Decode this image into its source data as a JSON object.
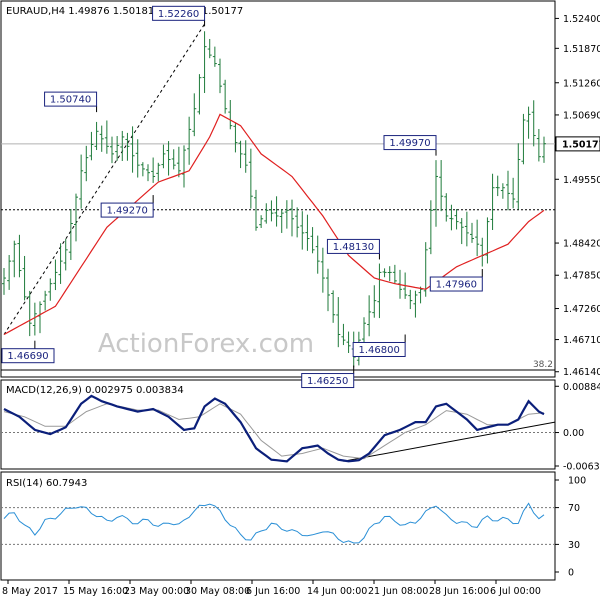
{
  "chart_data": {
    "type": "candlestick",
    "watermark": "ActionForex.com",
    "x_tick_labels": [
      "8 May 2017",
      "15 May 16:00",
      "23 May 00:00",
      "30 May 08:00",
      "6 Jun 16:00",
      "14 Jun 00:00",
      "21 Jun 08:00",
      "28 Jun 16:00",
      "6 Jul 00:00"
    ],
    "price_panel": {
      "header": "EURAUD,H4  1.49876 1.50181 1.49773 1.50177",
      "ylim": [
        1.461,
        1.5262
      ],
      "y_ticks": [
        "1.52400",
        "1.51870",
        "1.51260",
        "1.50690",
        "1.49550",
        "1.48420",
        "1.47850",
        "1.47260",
        "1.46710",
        "1.46140"
      ],
      "current_price": "1.50177",
      "hline_price": "1.50177",
      "dotted_level": "1.49010",
      "fib_label": "38.2",
      "fib_level": 1.4617,
      "trendline": [
        [
          0,
          1.468
        ],
        [
          39,
          1.523
        ]
      ],
      "annotations": [
        {
          "label": "1.46690",
          "index": 6,
          "price": 1.4669,
          "pos": "below"
        },
        {
          "label": "1.50740",
          "index": 18,
          "price": 1.5074,
          "pos": "above"
        },
        {
          "label": "1.49270",
          "index": 29,
          "price": 1.4927,
          "pos": "below"
        },
        {
          "label": "1.52260",
          "index": 39,
          "price": 1.5226,
          "pos": "above"
        },
        {
          "label": "1.46250",
          "index": 68,
          "price": 1.4625,
          "pos": "below"
        },
        {
          "label": "1.48130",
          "index": 73,
          "price": 1.4813,
          "pos": "above"
        },
        {
          "label": "1.46800",
          "index": 78,
          "price": 1.468,
          "pos": "below"
        },
        {
          "label": "1.49970",
          "index": 84,
          "price": 1.4997,
          "pos": "above"
        },
        {
          "label": "1.47960",
          "index": 93,
          "price": 1.4796,
          "pos": "below"
        }
      ],
      "close_anchors": [
        [
          0,
          1.478
        ],
        [
          2,
          1.484
        ],
        [
          5,
          1.47
        ],
        [
          8,
          1.475
        ],
        [
          12,
          1.483
        ],
        [
          15,
          1.497
        ],
        [
          18,
          1.504
        ],
        [
          21,
          1.5
        ],
        [
          23,
          1.503
        ],
        [
          26,
          1.498
        ],
        [
          29,
          1.496
        ],
        [
          31,
          1.5
        ],
        [
          34,
          1.497
        ],
        [
          37,
          1.508
        ],
        [
          39,
          1.519
        ],
        [
          41,
          1.516
        ],
        [
          43,
          1.508
        ],
        [
          45,
          1.502
        ],
        [
          47,
          1.498
        ],
        [
          49,
          1.487
        ],
        [
          51,
          1.49
        ],
        [
          53,
          1.489
        ],
        [
          55,
          1.49
        ],
        [
          57,
          1.487
        ],
        [
          59,
          1.485
        ],
        [
          61,
          1.481
        ],
        [
          63,
          1.475
        ],
        [
          65,
          1.468
        ],
        [
          67,
          1.466
        ],
        [
          68,
          1.464
        ],
        [
          70,
          1.47
        ],
        [
          72,
          1.474
        ],
        [
          73,
          1.479
        ],
        [
          75,
          1.479
        ],
        [
          77,
          1.476
        ],
        [
          79,
          1.474
        ],
        [
          81,
          1.476
        ],
        [
          83,
          1.49
        ],
        [
          84,
          1.496
        ],
        [
          86,
          1.489
        ],
        [
          88,
          1.488
        ],
        [
          90,
          1.486
        ],
        [
          92,
          1.484
        ],
        [
          93,
          1.482
        ],
        [
          95,
          1.494
        ],
        [
          97,
          1.494
        ],
        [
          99,
          1.492
        ],
        [
          101,
          1.506
        ],
        [
          102,
          1.507
        ],
        [
          104,
          1.4995
        ],
        [
          105,
          1.5018
        ]
      ],
      "ma_anchors": [
        [
          0,
          1.468
        ],
        [
          10,
          1.473
        ],
        [
          20,
          1.487
        ],
        [
          30,
          1.495
        ],
        [
          36,
          1.497
        ],
        [
          40,
          1.503
        ],
        [
          42,
          1.507
        ],
        [
          46,
          1.505
        ],
        [
          50,
          1.5
        ],
        [
          56,
          1.496
        ],
        [
          62,
          1.489
        ],
        [
          67,
          1.482
        ],
        [
          72,
          1.478
        ],
        [
          76,
          1.477
        ],
        [
          82,
          1.476
        ],
        [
          88,
          1.48
        ],
        [
          93,
          1.482
        ],
        [
          98,
          1.484
        ],
        [
          102,
          1.488
        ],
        [
          105,
          1.49
        ]
      ]
    },
    "macd_panel": {
      "label": "MACD(12,26,9) 0.002975 0.003834",
      "ylim": [
        -0.0064,
        0.0089
      ],
      "y_ticks": [
        "0.008848",
        "0.00",
        "-0.006399"
      ],
      "macd_anchors": [
        [
          0,
          0.0045
        ],
        [
          3,
          0.003
        ],
        [
          6,
          0.0005
        ],
        [
          9,
          -0.0003
        ],
        [
          12,
          0.001
        ],
        [
          15,
          0.0055
        ],
        [
          17,
          0.007
        ],
        [
          19,
          0.006
        ],
        [
          22,
          0.005
        ],
        [
          26,
          0.004
        ],
        [
          29,
          0.0045
        ],
        [
          32,
          0.003
        ],
        [
          35,
          0.0005
        ],
        [
          37,
          0.0008
        ],
        [
          39,
          0.005
        ],
        [
          41,
          0.0065
        ],
        [
          43,
          0.0055
        ],
        [
          46,
          0.002
        ],
        [
          49,
          -0.003
        ],
        [
          52,
          -0.0052
        ],
        [
          55,
          -0.0055
        ],
        [
          58,
          -0.003
        ],
        [
          61,
          -0.0025
        ],
        [
          63,
          -0.004
        ],
        [
          65,
          -0.0052
        ],
        [
          67,
          -0.0055
        ],
        [
          69,
          -0.0053
        ],
        [
          71,
          -0.004
        ],
        [
          74,
          -0.0005
        ],
        [
          77,
          0.0005
        ],
        [
          80,
          0.002
        ],
        [
          82,
          0.002
        ],
        [
          84,
          0.005
        ],
        [
          86,
          0.0055
        ],
        [
          88,
          0.004
        ],
        [
          90,
          0.0025
        ],
        [
          92,
          0.0005
        ],
        [
          94,
          0.001
        ],
        [
          96,
          0.0015
        ],
        [
          98,
          0.0015
        ],
        [
          100,
          0.0025
        ],
        [
          102,
          0.006
        ],
        [
          104,
          0.004
        ],
        [
          105,
          0.0035
        ]
      ],
      "signal_anchors": [
        [
          0,
          0.004
        ],
        [
          4,
          0.003
        ],
        [
          8,
          0.0012
        ],
        [
          12,
          0.0012
        ],
        [
          16,
          0.004
        ],
        [
          20,
          0.0055
        ],
        [
          26,
          0.0043
        ],
        [
          30,
          0.0043
        ],
        [
          34,
          0.0025
        ],
        [
          38,
          0.003
        ],
        [
          42,
          0.0055
        ],
        [
          46,
          0.0035
        ],
        [
          50,
          -0.0015
        ],
        [
          54,
          -0.0045
        ],
        [
          58,
          -0.004
        ],
        [
          62,
          -0.003
        ],
        [
          66,
          -0.0045
        ],
        [
          70,
          -0.005
        ],
        [
          74,
          -0.0025
        ],
        [
          78,
          0.0
        ],
        [
          82,
          0.0015
        ],
        [
          86,
          0.0042
        ],
        [
          90,
          0.0035
        ],
        [
          94,
          0.0015
        ],
        [
          98,
          0.0015
        ],
        [
          102,
          0.0035
        ],
        [
          105,
          0.0038
        ]
      ],
      "trendline": [
        [
          66,
          -0.0055
        ],
        [
          105,
          0.002
        ]
      ]
    },
    "rsi_panel": {
      "label": "RSI(14) 60.7943",
      "ylim": [
        0,
        100
      ],
      "y_ticks": [
        "100",
        "70",
        "30",
        "0"
      ],
      "rsi_anchors": [
        [
          0,
          58
        ],
        [
          2,
          65
        ],
        [
          4,
          50
        ],
        [
          6,
          42
        ],
        [
          8,
          55
        ],
        [
          10,
          60
        ],
        [
          12,
          67
        ],
        [
          14,
          72
        ],
        [
          16,
          68
        ],
        [
          18,
          62
        ],
        [
          20,
          55
        ],
        [
          22,
          60
        ],
        [
          24,
          58
        ],
        [
          26,
          52
        ],
        [
          28,
          58
        ],
        [
          30,
          48
        ],
        [
          32,
          55
        ],
        [
          34,
          50
        ],
        [
          36,
          62
        ],
        [
          38,
          70
        ],
        [
          40,
          76
        ],
        [
          42,
          65
        ],
        [
          44,
          52
        ],
        [
          46,
          40
        ],
        [
          48,
          35
        ],
        [
          50,
          45
        ],
        [
          52,
          52
        ],
        [
          54,
          48
        ],
        [
          56,
          44
        ],
        [
          58,
          42
        ],
        [
          60,
          38
        ],
        [
          62,
          46
        ],
        [
          64,
          40
        ],
        [
          66,
          34
        ],
        [
          68,
          30
        ],
        [
          70,
          38
        ],
        [
          72,
          52
        ],
        [
          74,
          60
        ],
        [
          76,
          56
        ],
        [
          78,
          50
        ],
        [
          80,
          55
        ],
        [
          82,
          64
        ],
        [
          84,
          74
        ],
        [
          86,
          60
        ],
        [
          88,
          55
        ],
        [
          90,
          52
        ],
        [
          92,
          50
        ],
        [
          94,
          60
        ],
        [
          96,
          56
        ],
        [
          98,
          58
        ],
        [
          100,
          52
        ],
        [
          102,
          76
        ],
        [
          104,
          56
        ],
        [
          105,
          60.79
        ]
      ]
    }
  }
}
